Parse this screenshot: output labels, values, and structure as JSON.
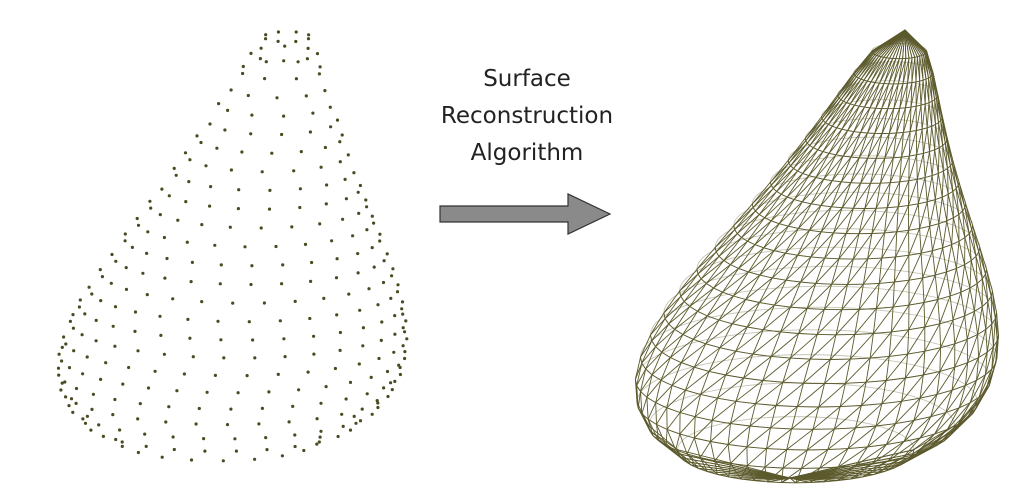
{
  "label": {
    "lines": [
      "Surface",
      "Reconstruction",
      "Algorithm"
    ]
  }
}
